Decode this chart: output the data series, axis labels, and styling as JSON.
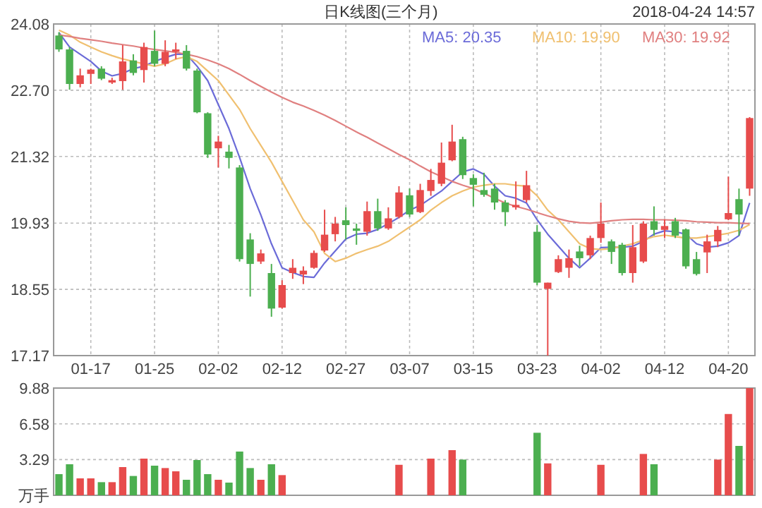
{
  "chart_data": [
    {
      "type": "candlestick",
      "title": "日K线图(三个月)",
      "annotations": [
        "2018-04-24 14:57"
      ],
      "categories": [
        null,
        null,
        null,
        "01-17",
        null,
        null,
        null,
        null,
        null,
        "01-25",
        null,
        null,
        null,
        null,
        null,
        "02-02",
        null,
        null,
        null,
        null,
        null,
        "02-12",
        null,
        null,
        null,
        null,
        null,
        "02-27",
        null,
        null,
        null,
        null,
        null,
        "03-07",
        null,
        null,
        null,
        null,
        null,
        "03-15",
        null,
        null,
        null,
        null,
        null,
        "03-23",
        null,
        null,
        null,
        null,
        null,
        "04-02",
        null,
        null,
        null,
        null,
        null,
        "04-12",
        null,
        null,
        null,
        null,
        null,
        "04-20",
        null,
        null
      ],
      "ohlc": [
        [
          23.84,
          23.91,
          23.5,
          23.55
        ],
        [
          23.55,
          23.6,
          22.71,
          22.83
        ],
        [
          22.83,
          23.15,
          22.76,
          23.01
        ],
        [
          23.04,
          23.15,
          22.83,
          23.13
        ],
        [
          23.15,
          23.2,
          22.91,
          22.94
        ],
        [
          22.86,
          22.96,
          22.83,
          22.91
        ],
        [
          22.89,
          23.64,
          22.71,
          23.3
        ],
        [
          23.32,
          23.45,
          23.01,
          23.06
        ],
        [
          23.12,
          23.69,
          22.86,
          23.6
        ],
        [
          23.52,
          23.94,
          23.2,
          23.25
        ],
        [
          23.25,
          23.74,
          23.2,
          23.5
        ],
        [
          23.5,
          23.69,
          23.35,
          23.55
        ],
        [
          23.52,
          23.64,
          23.11,
          23.15
        ],
        [
          23.11,
          23.15,
          22.22,
          22.24
        ],
        [
          22.22,
          22.24,
          21.29,
          21.36
        ],
        [
          21.49,
          21.75,
          21.09,
          21.63
        ],
        [
          21.42,
          21.56,
          21.07,
          21.29
        ],
        [
          21.09,
          21.14,
          19.13,
          19.18
        ],
        [
          19.59,
          19.72,
          18.4,
          19.08
        ],
        [
          19.13,
          19.38,
          19.08,
          19.3
        ],
        [
          18.89,
          19.08,
          17.98,
          18.15
        ],
        [
          18.17,
          18.74,
          18.15,
          18.64
        ],
        [
          18.89,
          19.18,
          18.77,
          19.0
        ],
        [
          18.86,
          19.03,
          18.66,
          18.94
        ],
        [
          19.0,
          19.36,
          18.98,
          19.31
        ],
        [
          19.36,
          20.21,
          19.33,
          19.69
        ],
        [
          19.7,
          20.06,
          19.55,
          19.92
        ],
        [
          19.99,
          20.26,
          19.59,
          19.89
        ],
        [
          19.82,
          19.92,
          19.48,
          19.77
        ],
        [
          19.75,
          20.38,
          19.67,
          20.18
        ],
        [
          20.18,
          20.44,
          19.77,
          19.82
        ],
        [
          19.82,
          20.26,
          19.79,
          20.03
        ],
        [
          20.06,
          20.7,
          20.03,
          20.57
        ],
        [
          20.51,
          20.65,
          20.06,
          20.11
        ],
        [
          20.16,
          20.75,
          20.14,
          20.62
        ],
        [
          20.6,
          21.06,
          20.5,
          20.83
        ],
        [
          20.75,
          21.61,
          20.7,
          21.19
        ],
        [
          21.24,
          21.98,
          21.22,
          21.63
        ],
        [
          21.68,
          21.73,
          20.85,
          20.93
        ],
        [
          20.87,
          20.95,
          20.28,
          20.73
        ],
        [
          20.62,
          20.98,
          20.48,
          20.52
        ],
        [
          20.65,
          20.75,
          20.21,
          20.36
        ],
        [
          20.36,
          20.41,
          19.87,
          20.16
        ],
        [
          20.26,
          20.8,
          20.21,
          20.31
        ],
        [
          20.41,
          21.02,
          20.36,
          20.72
        ],
        [
          19.75,
          19.89,
          18.64,
          18.69
        ],
        [
          18.56,
          18.69,
          17.17,
          18.69
        ],
        [
          18.91,
          19.26,
          18.89,
          19.18
        ],
        [
          19.0,
          19.38,
          18.79,
          19.2
        ],
        [
          19.34,
          19.46,
          19.03,
          19.2
        ],
        [
          19.26,
          19.67,
          19.18,
          19.62
        ],
        [
          19.62,
          20.36,
          19.52,
          19.92
        ],
        [
          19.55,
          19.59,
          19.08,
          19.33
        ],
        [
          19.48,
          19.52,
          18.84,
          18.89
        ],
        [
          18.89,
          19.89,
          18.69,
          19.43
        ],
        [
          19.13,
          19.97,
          19.1,
          19.92
        ],
        [
          19.97,
          20.28,
          19.67,
          19.79
        ],
        [
          19.79,
          20.01,
          19.62,
          19.87
        ],
        [
          19.97,
          20.04,
          19.62,
          19.67
        ],
        [
          19.8,
          19.82,
          18.98,
          19.03
        ],
        [
          19.18,
          19.33,
          18.84,
          18.87
        ],
        [
          19.32,
          19.69,
          18.89,
          19.55
        ],
        [
          19.55,
          19.87,
          19.43,
          19.79
        ],
        [
          20.01,
          20.9,
          19.99,
          20.14
        ],
        [
          20.43,
          20.65,
          19.67,
          20.11
        ],
        [
          20.65,
          22.14,
          20.5,
          22.12
        ]
      ],
      "series": [
        {
          "type": "line",
          "name": "MA5: 20.35",
          "color": "#6b6bd8",
          "values": [
            23.9,
            23.6,
            23.45,
            23.3,
            23.1,
            23.0,
            23.05,
            23.15,
            23.2,
            23.3,
            23.38,
            23.45,
            23.45,
            23.2,
            22.9,
            22.4,
            21.9,
            21.3,
            20.65,
            20.1,
            19.5,
            19.0,
            18.9,
            18.82,
            18.8,
            19.1,
            19.35,
            19.6,
            19.7,
            19.72,
            19.8,
            19.92,
            20.05,
            20.2,
            20.3,
            20.45,
            20.6,
            20.8,
            21.0,
            21.06,
            20.95,
            20.7,
            20.5,
            20.45,
            20.35,
            20.0,
            19.7,
            19.45,
            19.2,
            19.0,
            19.2,
            19.42,
            19.43,
            19.43,
            19.45,
            19.55,
            19.7,
            19.77,
            19.75,
            19.7,
            19.5,
            19.43,
            19.45,
            19.52,
            19.67,
            20.35
          ]
        },
        {
          "type": "line",
          "name": "MA10: 19.90",
          "color": "#f0c070",
          "values": [
            23.95,
            23.85,
            23.7,
            23.6,
            23.5,
            23.42,
            23.35,
            23.3,
            23.25,
            23.2,
            23.25,
            23.35,
            23.4,
            23.3,
            23.1,
            22.9,
            22.6,
            22.3,
            21.9,
            21.55,
            21.2,
            20.8,
            20.4,
            20.0,
            19.75,
            19.3,
            19.13,
            19.2,
            19.3,
            19.38,
            19.45,
            19.55,
            19.7,
            19.85,
            20.0,
            20.2,
            20.36,
            20.5,
            20.6,
            20.68,
            20.72,
            20.75,
            20.75,
            20.72,
            20.7,
            20.5,
            20.2,
            20.0,
            19.75,
            19.5,
            19.4,
            19.38,
            19.4,
            19.45,
            19.5,
            19.58,
            19.65,
            19.68,
            19.65,
            19.62,
            19.62,
            19.65,
            19.68,
            19.72,
            19.78,
            19.9
          ]
        },
        {
          "type": "line",
          "name": "MA30: 19.92",
          "color": "#e08080",
          "values": [
            23.85,
            23.82,
            23.78,
            23.75,
            23.72,
            23.68,
            23.65,
            23.62,
            23.58,
            23.55,
            23.52,
            23.49,
            23.45,
            23.4,
            23.33,
            23.25,
            23.15,
            23.03,
            22.9,
            22.78,
            22.66,
            22.55,
            22.45,
            22.37,
            22.28,
            22.18,
            22.07,
            21.95,
            21.83,
            21.72,
            21.6,
            21.48,
            21.36,
            21.25,
            21.12,
            21.0,
            20.9,
            20.8,
            20.72,
            20.65,
            20.55,
            20.45,
            20.35,
            20.28,
            20.22,
            20.15,
            20.08,
            20.02,
            19.97,
            19.94,
            19.93,
            19.95,
            19.98,
            20.0,
            20.01,
            20.01,
            20.0,
            20.0,
            19.99,
            19.98,
            19.96,
            19.95,
            19.94,
            19.94,
            19.93,
            19.92
          ]
        }
      ],
      "ylim": [
        17.17,
        24.08
      ],
      "yticks": [
        17.17,
        18.55,
        19.93,
        21.32,
        {
          "value": 22.7,
          "label": "22.70"
        },
        24.08
      ],
      "grid": true,
      "legend": "top right"
    },
    {
      "type": "bar",
      "categories": [
        null,
        null,
        null,
        null,
        null,
        null,
        null,
        null,
        null,
        null,
        null,
        null,
        null,
        null,
        null,
        null,
        null,
        null,
        null,
        null,
        null,
        null,
        null,
        null,
        null,
        null,
        null,
        null,
        null,
        null,
        null,
        null,
        null,
        null,
        null,
        null,
        null,
        null,
        null,
        null,
        null,
        null,
        null,
        null,
        null,
        null,
        null,
        null,
        null,
        null,
        null,
        null,
        null,
        null,
        null,
        null,
        null,
        null,
        null,
        null,
        null,
        null,
        null,
        null,
        null,
        null
      ],
      "values": [
        1.95,
        2.86,
        1.56,
        1.56,
        1.21,
        1.21,
        2.6,
        1.78,
        3.38,
        2.73,
        2.51,
        2.21,
        1.43,
        3.25,
        1.95,
        1.43,
        1.17,
        4.03,
        2.51,
        1.43,
        2.86,
        1.86,
        null,
        null,
        null,
        null,
        null,
        null,
        null,
        null,
        null,
        null,
        2.81,
        null,
        null,
        3.38,
        null,
        4.16,
        3.29,
        null,
        null,
        null,
        null,
        null,
        null,
        5.76,
        2.94,
        null,
        null,
        null,
        null,
        2.81,
        null,
        null,
        null,
        3.81,
        2.86,
        null,
        null,
        null,
        null,
        null,
        3.29,
        7.49,
        4.55,
        9.87
      ],
      "colors": [
        "#4caf50",
        "#4caf50",
        "#e74c4c",
        "#e74c4c",
        "#4caf50",
        "#e74c4c",
        "#e74c4c",
        "#4caf50",
        "#e74c4c",
        "#4caf50",
        "#e74c4c",
        "#e74c4c",
        "#4caf50",
        "#4caf50",
        "#4caf50",
        "#e74c4c",
        "#4caf50",
        "#4caf50",
        "#4caf50",
        "#e74c4c",
        "#4caf50",
        "#e74c4c",
        null,
        null,
        null,
        null,
        null,
        null,
        null,
        null,
        null,
        null,
        "#e74c4c",
        null,
        null,
        "#e74c4c",
        null,
        "#e74c4c",
        "#4caf50",
        null,
        null,
        null,
        null,
        null,
        null,
        "#4caf50",
        "#e74c4c",
        null,
        null,
        null,
        null,
        "#e74c4c",
        null,
        null,
        null,
        "#e74c4c",
        "#4caf50",
        null,
        null,
        null,
        null,
        null,
        "#e74c4c",
        "#e74c4c",
        "#4caf50",
        "#e74c4c"
      ],
      "ylim": [
        0,
        9.88
      ],
      "yticks": [
        {
          "value": 0,
          "label": "万手"
        },
        3.29,
        6.58,
        9.88
      ],
      "grid": true,
      "tick_labels": "y"
    }
  ]
}
